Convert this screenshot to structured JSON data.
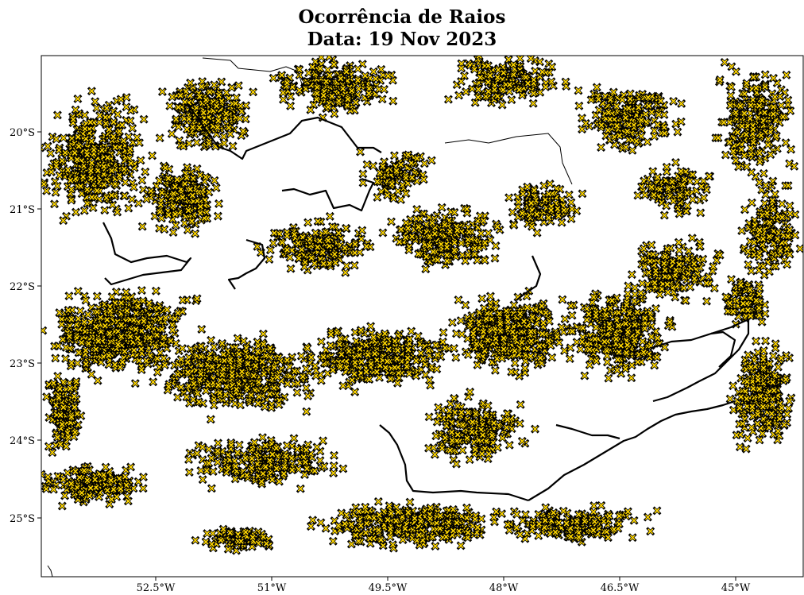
{
  "title": {
    "line1": "Ocorrência de Raios",
    "line2": "Data: 19 Nov 2023"
  },
  "map": {
    "marker_color": "#ffd700",
    "marker_edge": "#000000",
    "marker_shape": "x-marker",
    "lon_ticks": [
      "52.5°W",
      "51°W",
      "49.5°W",
      "48°W",
      "46.5°W",
      "45°W"
    ],
    "lat_ticks": [
      "20°S",
      "21°S",
      "22°S",
      "23°S",
      "24°S",
      "25°S"
    ],
    "extent": {
      "lon_min": -53.9,
      "lon_max": -44.0,
      "lat_min": -25.77,
      "lat_max": -19.06
    }
  }
}
